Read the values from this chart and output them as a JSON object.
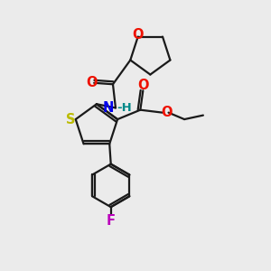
{
  "bg_color": "#ebebeb",
  "bond_color": "#1a1a1a",
  "O_color": "#ee1100",
  "N_color": "#0000ee",
  "S_color": "#bbbb00",
  "F_color": "#bb00bb",
  "H_color": "#008888",
  "lw": 1.6,
  "figsize": [
    3.0,
    3.0
  ],
  "dpi": 100,
  "xlim": [
    0,
    10
  ],
  "ylim": [
    0,
    10
  ]
}
